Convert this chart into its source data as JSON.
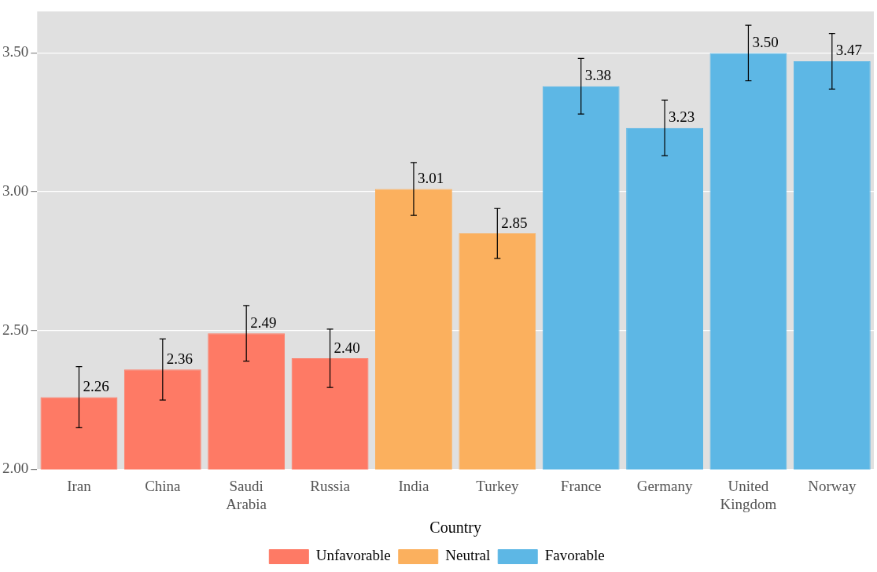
{
  "chart_data": {
    "type": "bar",
    "xlabel": "Country",
    "categories": [
      "Iran",
      "China",
      "Saudi Arabia",
      "Russia",
      "India",
      "Turkey",
      "France",
      "Germany",
      "United Kingdom",
      "Norway"
    ],
    "series": [
      {
        "name": "Unfavorable",
        "color": "#fe7a65",
        "values": [
          2.26,
          2.36,
          2.49,
          2.4,
          null,
          null,
          null,
          null,
          null,
          null
        ],
        "value_labels": [
          "2.26",
          "2.36",
          "2.49",
          "2.40",
          null,
          null,
          null,
          null,
          null,
          null
        ],
        "errors": [
          0.11,
          0.11,
          0.1,
          0.105,
          null,
          null,
          null,
          null,
          null,
          null
        ]
      },
      {
        "name": "Neutral",
        "color": "#fbb05e",
        "values": [
          null,
          null,
          null,
          null,
          3.01,
          2.85,
          null,
          null,
          null,
          null
        ],
        "value_labels": [
          null,
          null,
          null,
          null,
          "3.01",
          "2.85",
          null,
          null,
          null,
          null
        ],
        "errors": [
          null,
          null,
          null,
          null,
          0.095,
          0.09,
          null,
          null,
          null,
          null
        ]
      },
      {
        "name": "Favorable",
        "color": "#5db7e5",
        "values": [
          null,
          null,
          null,
          null,
          null,
          null,
          3.38,
          3.23,
          3.5,
          3.47
        ],
        "value_labels": [
          null,
          null,
          null,
          null,
          null,
          null,
          "3.38",
          "3.23",
          "3.50",
          "3.47"
        ],
        "errors": [
          null,
          null,
          null,
          null,
          null,
          null,
          0.1,
          0.1,
          0.1,
          0.1
        ]
      }
    ],
    "ylim": [
      2.0,
      3.65
    ],
    "yticks": [
      {
        "value": 2,
        "label": "2.00"
      },
      {
        "value": 2.5,
        "label": "2.50"
      },
      {
        "value": 3,
        "label": "3.00"
      },
      {
        "value": 3.5,
        "label": "3.50"
      }
    ],
    "grid": "y",
    "legend": "bottom"
  }
}
